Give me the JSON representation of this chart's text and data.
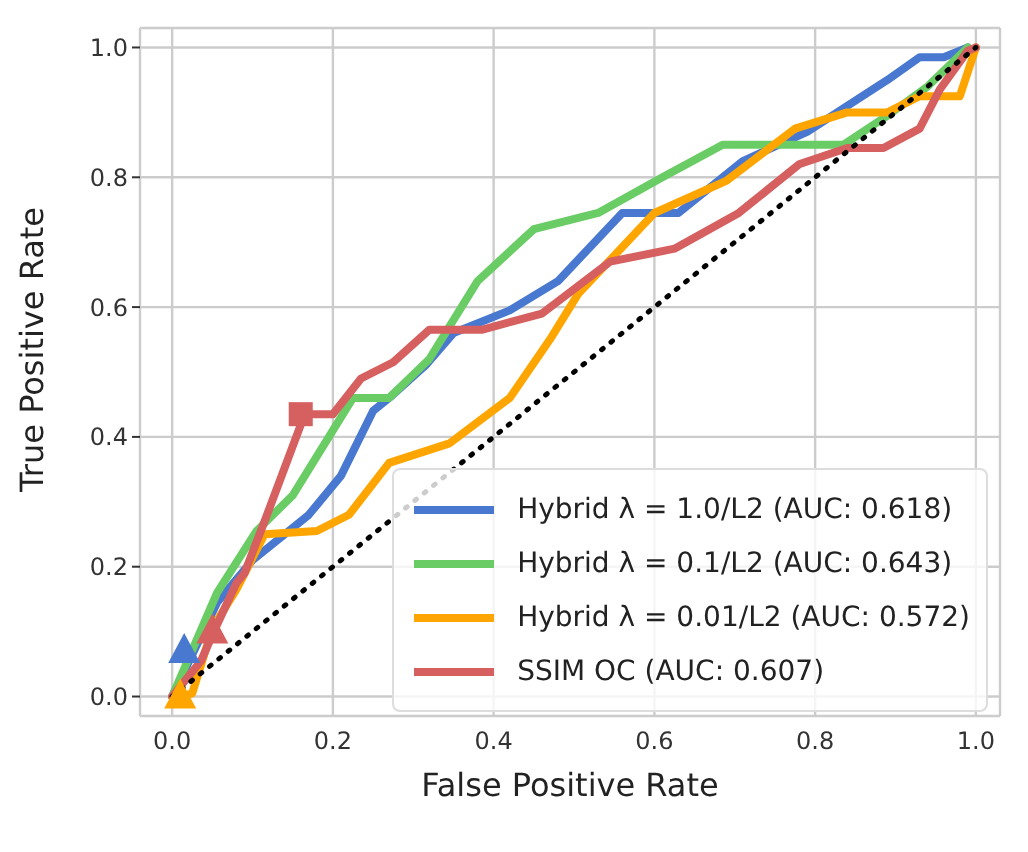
{
  "chart_data": {
    "type": "line",
    "xlabel": "False Positive Rate",
    "ylabel": "True Positive Rate",
    "xlim": [
      -0.04,
      1.03
    ],
    "ylim": [
      -0.03,
      1.03
    ],
    "xticks": [
      {
        "value": 0,
        "label": "0.0"
      },
      {
        "value": 0.2,
        "label": "0.2"
      },
      {
        "value": 0.4,
        "label": "0.4"
      },
      {
        "value": 0.6,
        "label": "0.6"
      },
      {
        "value": 0.8,
        "label": "0.8"
      },
      {
        "value": 1,
        "label": "1.0"
      }
    ],
    "yticks": [
      {
        "value": 0,
        "label": "0.0"
      },
      {
        "value": 0.2,
        "label": "0.2"
      },
      {
        "value": 0.4,
        "label": "0.4"
      },
      {
        "value": 0.6,
        "label": "0.6"
      },
      {
        "value": 0.8,
        "label": "0.8"
      },
      {
        "value": 1,
        "label": "1.0"
      }
    ],
    "grid": true,
    "legend": "bottom right",
    "series": [
      {
        "name": "Hybrid λ = 1.0/L2 (AUC: 0.618)",
        "color": "#4878d0",
        "x": [
          0,
          0.056,
          0.1,
          0.17,
          0.21,
          0.25,
          0.27,
          0.315,
          0.35,
          0.42,
          0.48,
          0.56,
          0.63,
          0.71,
          0.79,
          0.89,
          0.93,
          0.96,
          0.99
        ],
        "values": [
          0,
          0.145,
          0.21,
          0.28,
          0.34,
          0.44,
          0.46,
          0.51,
          0.56,
          0.595,
          0.64,
          0.745,
          0.745,
          0.825,
          0.87,
          0.95,
          0.985,
          0.985,
          1.0
        ]
      },
      {
        "name": "Hybrid λ = 0.1/L2 (AUC: 0.643)",
        "color": "#6acc64",
        "x": [
          0,
          0.056,
          0.105,
          0.15,
          0.225,
          0.27,
          0.32,
          0.38,
          0.45,
          0.53,
          0.61,
          0.685,
          0.835,
          0.89,
          0.94,
          0.99
        ],
        "values": [
          0,
          0.16,
          0.255,
          0.31,
          0.46,
          0.46,
          0.52,
          0.64,
          0.72,
          0.745,
          0.8,
          0.85,
          0.85,
          0.895,
          0.94,
          1.0
        ]
      },
      {
        "name": "Hybrid λ = 0.01/L2 (AUC: 0.572)",
        "color": "#ffa500",
        "x": [
          0.01,
          0.025,
          0.05,
          0.08,
          0.115,
          0.18,
          0.22,
          0.27,
          0.345,
          0.42,
          0.47,
          0.505,
          0.6,
          0.69,
          0.775,
          0.84,
          0.89,
          0.93,
          0.98,
          1.0
        ],
        "values": [
          0,
          0.005,
          0.105,
          0.165,
          0.25,
          0.255,
          0.28,
          0.36,
          0.39,
          0.46,
          0.55,
          0.62,
          0.745,
          0.795,
          0.875,
          0.9,
          0.9,
          0.925,
          0.925,
          1.0
        ]
      },
      {
        "name": "SSIM OC (AUC: 0.607)",
        "color": "#d65f5f",
        "x": [
          0,
          0.036,
          0.05,
          0.08,
          0.09,
          0.115,
          0.165,
          0.2,
          0.235,
          0.275,
          0.32,
          0.385,
          0.46,
          0.545,
          0.625,
          0.705,
          0.78,
          0.84,
          0.885,
          0.93,
          0.955,
          0.99,
          1.0
        ],
        "values": [
          0,
          0.055,
          0.095,
          0.175,
          0.19,
          0.27,
          0.435,
          0.435,
          0.49,
          0.515,
          0.565,
          0.565,
          0.59,
          0.67,
          0.69,
          0.745,
          0.82,
          0.845,
          0.845,
          0.875,
          0.935,
          0.995,
          1.0
        ]
      },
      {
        "type": "line",
        "color": "#000000",
        "line_style": "dotted",
        "x": [
          0,
          1
        ],
        "values": [
          0,
          1
        ]
      },
      {
        "type": "scatter",
        "color": "#4878d0",
        "marker": "triangle",
        "x": [
          0.015
        ],
        "values": [
          0.07
        ]
      },
      {
        "type": "scatter",
        "color": "#ffa500",
        "marker": "triangle",
        "x": [
          0.01
        ],
        "values": [
          0
        ]
      },
      {
        "type": "scatter",
        "color": "#d65f5f",
        "marker": "triangle",
        "x": [
          0.05
        ],
        "values": [
          0.1
        ]
      },
      {
        "type": "scatter",
        "color": "#d65f5f",
        "marker": "square",
        "x": [
          0.16
        ],
        "values": [
          0.435
        ]
      }
    ]
  }
}
